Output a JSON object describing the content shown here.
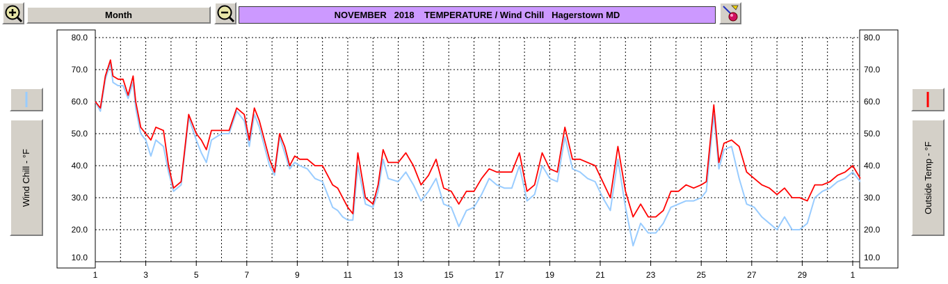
{
  "toolbar": {
    "zoom_in_icon": "magnifier-plus-icon",
    "zoom_out_icon": "magnifier-minus-icon",
    "period_label": "Month",
    "title": "NOVEMBER   2018    TEMPERATURE / Wind Chill   Hagerstown MD",
    "tool_icon": "graph-tool-icon"
  },
  "colors": {
    "title_bg": "#cc99ff",
    "wind_chill": "#99ccff",
    "outside_temp": "#ff0000"
  },
  "legend": {
    "left_caption": "Wind Chill - °F",
    "right_caption": "Outside Temp - °F"
  },
  "chart_data": {
    "type": "line",
    "y_ticks": [
      "80.0",
      "70.0",
      "60.0",
      "50.0",
      "40.0",
      "30.0",
      "20.0",
      "10.0"
    ],
    "ylim": [
      10,
      80
    ],
    "xlim": [
      1,
      31.3
    ],
    "x_tick_labels": [
      "1",
      "3",
      "5",
      "7",
      "9",
      "11",
      "13",
      "15",
      "17",
      "19",
      "21",
      "23",
      "25",
      "27",
      "29",
      "1"
    ],
    "grid": true,
    "series": [
      {
        "name": "Outside Temp - °F",
        "color": "#ff0000",
        "x": [
          1.0,
          1.2,
          1.4,
          1.6,
          1.7,
          1.9,
          2.1,
          2.3,
          2.5,
          2.6,
          2.8,
          3.0,
          3.2,
          3.4,
          3.7,
          3.9,
          4.1,
          4.4,
          4.7,
          5.0,
          5.2,
          5.4,
          5.6,
          6.0,
          6.3,
          6.6,
          6.9,
          7.1,
          7.3,
          7.5,
          7.7,
          7.9,
          8.1,
          8.3,
          8.5,
          8.7,
          8.9,
          9.1,
          9.4,
          9.7,
          10.0,
          10.2,
          10.4,
          10.6,
          10.8,
          11.0,
          11.2,
          11.4,
          11.7,
          12.0,
          12.2,
          12.4,
          12.6,
          13.0,
          13.3,
          13.6,
          13.9,
          14.2,
          14.5,
          14.8,
          15.1,
          15.4,
          15.7,
          16.0,
          16.3,
          16.6,
          16.9,
          17.2,
          17.5,
          17.8,
          18.1,
          18.4,
          18.7,
          19.0,
          19.3,
          19.6,
          19.9,
          20.2,
          20.5,
          20.8,
          21.1,
          21.4,
          21.7,
          22.0,
          22.3,
          22.6,
          22.9,
          23.2,
          23.5,
          23.8,
          24.1,
          24.4,
          24.7,
          25.0,
          25.2,
          25.5,
          25.7,
          25.9,
          26.2,
          26.5,
          26.8,
          27.1,
          27.4,
          27.7,
          28.0,
          28.3,
          28.6,
          28.9,
          29.2,
          29.5,
          29.8,
          30.1,
          30.4,
          30.7,
          31.0,
          31.3
        ],
        "y": [
          60,
          58,
          68,
          73,
          68,
          67,
          67,
          62,
          68,
          60,
          52,
          50,
          48,
          52,
          51,
          40,
          33,
          35,
          56,
          50,
          48,
          45,
          51,
          51,
          51,
          58,
          56,
          48,
          58,
          54,
          48,
          42,
          38,
          50,
          46,
          40,
          43,
          42,
          42,
          40,
          40,
          37,
          34,
          33,
          30,
          27,
          25,
          44,
          30,
          28,
          34,
          45,
          41,
          41,
          44,
          40,
          34,
          37,
          42,
          33,
          32,
          28,
          32,
          32,
          36,
          39,
          38,
          38,
          38,
          44,
          32,
          34,
          44,
          39,
          38,
          52,
          42,
          42,
          41,
          40,
          35,
          30,
          46,
          32,
          24,
          28,
          24,
          24,
          26,
          32,
          32,
          34,
          33,
          34,
          35,
          59,
          41,
          47,
          48,
          46,
          38,
          36,
          34,
          33,
          31,
          33,
          30,
          30,
          29,
          34,
          34,
          35,
          37,
          38,
          40,
          36
        ]
      },
      {
        "name": "Wind Chill - °F",
        "color": "#99ccff",
        "x": [
          1.0,
          1.2,
          1.4,
          1.6,
          1.7,
          1.9,
          2.1,
          2.3,
          2.5,
          2.6,
          2.8,
          3.0,
          3.2,
          3.4,
          3.7,
          3.9,
          4.1,
          4.4,
          4.7,
          5.0,
          5.2,
          5.4,
          5.6,
          6.0,
          6.3,
          6.6,
          6.9,
          7.1,
          7.3,
          7.5,
          7.7,
          7.9,
          8.1,
          8.3,
          8.5,
          8.7,
          8.9,
          9.1,
          9.4,
          9.7,
          10.0,
          10.2,
          10.4,
          10.6,
          10.8,
          11.0,
          11.2,
          11.4,
          11.7,
          12.0,
          12.2,
          12.4,
          12.6,
          13.0,
          13.3,
          13.6,
          13.9,
          14.2,
          14.5,
          14.8,
          15.1,
          15.4,
          15.7,
          16.0,
          16.3,
          16.6,
          16.9,
          17.2,
          17.5,
          17.8,
          18.1,
          18.4,
          18.7,
          19.0,
          19.3,
          19.6,
          19.9,
          20.2,
          20.5,
          20.8,
          21.1,
          21.4,
          21.7,
          22.0,
          22.3,
          22.6,
          22.9,
          23.2,
          23.5,
          23.8,
          24.1,
          24.4,
          24.7,
          25.0,
          25.2,
          25.5,
          25.7,
          25.9,
          26.2,
          26.5,
          26.8,
          27.1,
          27.4,
          27.7,
          28.0,
          28.3,
          28.6,
          28.9,
          29.2,
          29.5,
          29.8,
          30.1,
          30.4,
          30.7,
          31.0,
          31.3
        ],
        "y": [
          60,
          57,
          67,
          72,
          66,
          65,
          65,
          61,
          66,
          58,
          50,
          48,
          43,
          48,
          46,
          38,
          32,
          34,
          55,
          48,
          44,
          41,
          48,
          50,
          50,
          57,
          54,
          46,
          56,
          52,
          46,
          40,
          37,
          49,
          44,
          39,
          41,
          40,
          39,
          36,
          35,
          31,
          27,
          26,
          24,
          23,
          23,
          40,
          28,
          27,
          32,
          42,
          36,
          35,
          38,
          34,
          29,
          32,
          36,
          28,
          27,
          21,
          26,
          27,
          31,
          36,
          34,
          33,
          33,
          40,
          29,
          31,
          40,
          36,
          35,
          49,
          39,
          38,
          36,
          35,
          30,
          26,
          42,
          27,
          15,
          22,
          19,
          19,
          22,
          27,
          28,
          29,
          29,
          30,
          32,
          56,
          39,
          45,
          46,
          36,
          28,
          27,
          24,
          22,
          20,
          24,
          20,
          20,
          22,
          30,
          32,
          33,
          35,
          36,
          38,
          35
        ]
      }
    ]
  }
}
